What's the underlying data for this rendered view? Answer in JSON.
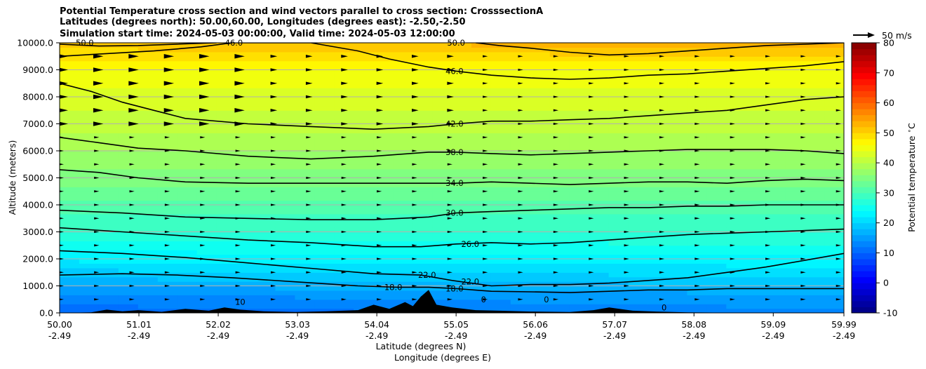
{
  "chart_data": {
    "type": "contour",
    "title_lines": [
      "Potential Temperature cross section and wind vectors parallel to cross section: CrosssectionA",
      "Latitudes (degrees north): 50.00,60.00, Longitudes (degrees east): -2.50,-2.50",
      "Simulation start time: 2024-05-03 00:00:00, Valid time: 2024-05-03 12:00:00"
    ],
    "xlabel_lines": [
      "Latitude (degrees N)",
      "Longitude (degrees E)"
    ],
    "ylabel": "Altitude (meters)",
    "x_ticks": [
      {
        "lat": "50.00",
        "lon": "-2.49"
      },
      {
        "lat": "51.01",
        "lon": "-2.49"
      },
      {
        "lat": "52.02",
        "lon": "-2.49"
      },
      {
        "lat": "53.03",
        "lon": "-2.49"
      },
      {
        "lat": "54.04",
        "lon": "-2.49"
      },
      {
        "lat": "55.05",
        "lon": "-2.49"
      },
      {
        "lat": "56.06",
        "lon": "-2.49"
      },
      {
        "lat": "57.07",
        "lon": "-2.49"
      },
      {
        "lat": "58.08",
        "lon": "-2.49"
      },
      {
        "lat": "59.09",
        "lon": "-2.49"
      },
      {
        "lat": "59.99",
        "lon": "-2.49"
      }
    ],
    "xlim": [
      50.0,
      59.99
    ],
    "ylim": [
      0,
      10000
    ],
    "y_ticks": [
      "0.0",
      "1000.0",
      "2000.0",
      "3000.0",
      "4000.0",
      "5000.0",
      "6000.0",
      "7000.0",
      "8000.0",
      "9000.0",
      "10000.0"
    ],
    "y_tick_values": [
      0,
      1000,
      2000,
      3000,
      4000,
      5000,
      6000,
      7000,
      8000,
      9000,
      10000
    ],
    "grid": "horizontal",
    "colorbar": {
      "label": "Potential temperature $^\\circ$C",
      "range": [
        -10,
        80
      ],
      "ticks": [
        "-10",
        "0",
        "10",
        "20",
        "30",
        "40",
        "50",
        "60",
        "70",
        "80"
      ],
      "colormap": "jet"
    },
    "contour_labels": [
      {
        "text": "22.0",
        "lat": 54.68,
        "alt": 1400
      },
      {
        "text": "22.0",
        "lat": 55.23,
        "alt": 1150
      },
      {
        "text": "18.0",
        "lat": 54.25,
        "alt": 950
      },
      {
        "text": "18.0",
        "lat": 55.03,
        "alt": 900
      },
      {
        "text": "26.0",
        "lat": 55.23,
        "alt": 2550
      },
      {
        "text": "30.0",
        "lat": 55.03,
        "alt": 3700
      },
      {
        "text": "34.0",
        "lat": 55.03,
        "alt": 4800
      },
      {
        "text": "38.0",
        "lat": 55.03,
        "alt": 5950
      },
      {
        "text": "42.0",
        "lat": 55.03,
        "alt": 7000
      },
      {
        "text": "46.0",
        "lat": 55.03,
        "alt": 8950
      },
      {
        "text": "50.0",
        "lat": 55.05,
        "alt": 10000
      },
      {
        "text": "46.0",
        "lat": 52.22,
        "alt": 10000
      },
      {
        "text": "50.0",
        "lat": 50.32,
        "alt": 10000
      },
      {
        "text": "10",
        "lat": 52.3,
        "alt": 400
      },
      {
        "text": "0",
        "lat": 55.4,
        "alt": 500
      },
      {
        "text": "0",
        "lat": 56.2,
        "alt": 500
      },
      {
        "text": "0",
        "lat": 57.7,
        "alt": 200
      }
    ],
    "contour_levels": [
      {
        "level": 18,
        "points": [
          [
            50.0,
            1400
          ],
          [
            50.8,
            1450
          ],
          [
            51.5,
            1400
          ],
          [
            52.2,
            1300
          ],
          [
            53.0,
            1150
          ],
          [
            53.8,
            1000
          ],
          [
            54.3,
            950
          ],
          [
            54.7,
            950
          ],
          [
            55.05,
            900
          ],
          [
            55.5,
            800
          ],
          [
            56.0,
            780
          ],
          [
            56.5,
            750
          ],
          [
            57.0,
            800
          ],
          [
            57.5,
            850
          ],
          [
            58.0,
            850
          ],
          [
            58.5,
            900
          ],
          [
            59.0,
            900
          ],
          [
            59.5,
            900
          ],
          [
            59.99,
            900
          ]
        ]
      },
      {
        "level": 22,
        "points": [
          [
            50.0,
            2300
          ],
          [
            50.8,
            2200
          ],
          [
            51.6,
            2050
          ],
          [
            52.4,
            1850
          ],
          [
            53.2,
            1650
          ],
          [
            54.0,
            1450
          ],
          [
            54.6,
            1400
          ],
          [
            55.0,
            1200
          ],
          [
            55.5,
            1000
          ],
          [
            56.0,
            1050
          ],
          [
            56.5,
            1050
          ],
          [
            57.0,
            1100
          ],
          [
            57.5,
            1200
          ],
          [
            58.0,
            1300
          ],
          [
            58.5,
            1500
          ],
          [
            59.0,
            1700
          ],
          [
            59.5,
            1950
          ],
          [
            59.99,
            2200
          ]
        ]
      },
      {
        "level": 26,
        "points": [
          [
            50.0,
            3150
          ],
          [
            50.8,
            3000
          ],
          [
            51.6,
            2850
          ],
          [
            52.4,
            2700
          ],
          [
            53.2,
            2600
          ],
          [
            54.0,
            2450
          ],
          [
            54.6,
            2450
          ],
          [
            55.05,
            2550
          ],
          [
            55.5,
            2600
          ],
          [
            56.0,
            2550
          ],
          [
            56.5,
            2600
          ],
          [
            57.0,
            2700
          ],
          [
            57.5,
            2800
          ],
          [
            58.0,
            2900
          ],
          [
            58.5,
            2950
          ],
          [
            59.0,
            3000
          ],
          [
            59.5,
            3050
          ],
          [
            59.99,
            3100
          ]
        ]
      },
      {
        "level": 30,
        "points": [
          [
            50.0,
            3800
          ],
          [
            50.8,
            3700
          ],
          [
            51.6,
            3550
          ],
          [
            52.4,
            3500
          ],
          [
            53.2,
            3450
          ],
          [
            54.0,
            3450
          ],
          [
            54.7,
            3550
          ],
          [
            55.05,
            3700
          ],
          [
            55.5,
            3750
          ],
          [
            56.0,
            3800
          ],
          [
            56.5,
            3850
          ],
          [
            57.0,
            3900
          ],
          [
            57.5,
            3900
          ],
          [
            58.0,
            3950
          ],
          [
            58.5,
            3950
          ],
          [
            59.0,
            4000
          ],
          [
            59.5,
            4000
          ],
          [
            59.99,
            4000
          ]
        ]
      },
      {
        "level": 34,
        "points": [
          [
            50.0,
            5300
          ],
          [
            50.5,
            5200
          ],
          [
            51.0,
            5000
          ],
          [
            51.6,
            4850
          ],
          [
            52.4,
            4800
          ],
          [
            53.2,
            4800
          ],
          [
            54.0,
            4800
          ],
          [
            54.7,
            4800
          ],
          [
            55.05,
            4800
          ],
          [
            55.5,
            4850
          ],
          [
            56.0,
            4800
          ],
          [
            56.5,
            4750
          ],
          [
            57.0,
            4800
          ],
          [
            57.5,
            4850
          ],
          [
            58.0,
            4850
          ],
          [
            58.5,
            4800
          ],
          [
            59.0,
            4900
          ],
          [
            59.5,
            4950
          ],
          [
            59.99,
            4900
          ]
        ]
      },
      {
        "level": 38,
        "points": [
          [
            50.0,
            6500
          ],
          [
            50.5,
            6300
          ],
          [
            51.0,
            6100
          ],
          [
            51.6,
            6000
          ],
          [
            52.4,
            5800
          ],
          [
            53.2,
            5700
          ],
          [
            54.0,
            5800
          ],
          [
            54.7,
            5950
          ],
          [
            55.05,
            5950
          ],
          [
            55.5,
            5900
          ],
          [
            56.0,
            5850
          ],
          [
            56.5,
            5900
          ],
          [
            57.0,
            5950
          ],
          [
            57.5,
            6000
          ],
          [
            58.0,
            6050
          ],
          [
            58.5,
            6050
          ],
          [
            59.0,
            6050
          ],
          [
            59.5,
            6000
          ],
          [
            59.99,
            5900
          ]
        ]
      },
      {
        "level": 42,
        "points": [
          [
            50.0,
            8500
          ],
          [
            50.4,
            8200
          ],
          [
            50.8,
            7800
          ],
          [
            51.2,
            7500
          ],
          [
            51.6,
            7200
          ],
          [
            52.4,
            7000
          ],
          [
            53.2,
            6900
          ],
          [
            54.0,
            6800
          ],
          [
            54.7,
            6900
          ],
          [
            55.05,
            7000
          ],
          [
            55.5,
            7100
          ],
          [
            56.0,
            7100
          ],
          [
            56.5,
            7150
          ],
          [
            57.0,
            7200
          ],
          [
            57.5,
            7300
          ],
          [
            58.0,
            7400
          ],
          [
            58.5,
            7500
          ],
          [
            59.0,
            7700
          ],
          [
            59.5,
            7900
          ],
          [
            59.99,
            8000
          ]
        ]
      },
      {
        "level": 46,
        "points": [
          [
            50.0,
            9500
          ],
          [
            50.6,
            9600
          ],
          [
            51.2,
            9700
          ],
          [
            51.8,
            9850
          ],
          [
            52.2,
            10000
          ],
          [
            53.2,
            10000
          ],
          [
            53.8,
            9700
          ],
          [
            54.2,
            9400
          ],
          [
            54.7,
            9100
          ],
          [
            55.05,
            8950
          ],
          [
            55.5,
            8800
          ],
          [
            56.0,
            8700
          ],
          [
            56.5,
            8650
          ],
          [
            57.0,
            8700
          ],
          [
            57.5,
            8800
          ],
          [
            58.0,
            8850
          ],
          [
            58.5,
            8950
          ],
          [
            59.0,
            9050
          ],
          [
            59.5,
            9150
          ],
          [
            59.99,
            9300
          ]
        ]
      },
      {
        "level": 50,
        "points": [
          [
            50.0,
            9950
          ],
          [
            50.5,
            9880
          ],
          [
            51.0,
            9900
          ],
          [
            51.5,
            9950
          ],
          [
            52.0,
            10000
          ]
        ]
      },
      {
        "level": 50,
        "points": [
          [
            55.3,
            10000
          ],
          [
            55.6,
            9900
          ],
          [
            56.0,
            9800
          ],
          [
            56.5,
            9650
          ],
          [
            57.0,
            9550
          ],
          [
            57.5,
            9600
          ],
          [
            58.0,
            9700
          ],
          [
            58.5,
            9800
          ],
          [
            59.0,
            9900
          ],
          [
            59.5,
            9950
          ],
          [
            59.99,
            10000
          ]
        ]
      }
    ],
    "terrain_profile": [
      [
        50.0,
        0
      ],
      [
        50.4,
        20
      ],
      [
        50.6,
        120
      ],
      [
        50.8,
        60
      ],
      [
        51.0,
        100
      ],
      [
        51.3,
        40
      ],
      [
        51.6,
        150
      ],
      [
        51.9,
        80
      ],
      [
        52.1,
        200
      ],
      [
        52.3,
        120
      ],
      [
        52.6,
        60
      ],
      [
        53.0,
        30
      ],
      [
        53.4,
        60
      ],
      [
        53.8,
        100
      ],
      [
        54.0,
        300
      ],
      [
        54.2,
        150
      ],
      [
        54.4,
        400
      ],
      [
        54.5,
        250
      ],
      [
        54.6,
        600
      ],
      [
        54.7,
        850
      ],
      [
        54.8,
        300
      ],
      [
        55.0,
        200
      ],
      [
        55.3,
        100
      ],
      [
        55.6,
        80
      ],
      [
        56.0,
        50
      ],
      [
        56.5,
        30
      ],
      [
        56.8,
        100
      ],
      [
        57.0,
        200
      ],
      [
        57.3,
        80
      ],
      [
        57.6,
        50
      ],
      [
        58.0,
        20
      ],
      [
        58.5,
        10
      ],
      [
        59.0,
        0
      ],
      [
        59.99,
        0
      ]
    ],
    "wind_vectors": {
      "reference_label": "50 m/s",
      "reference_speed_ms": 50,
      "grid_lat": [
        50.0,
        50.45,
        50.9,
        51.35,
        51.8,
        52.25,
        52.7,
        53.15,
        53.6,
        54.05,
        54.5,
        54.95,
        55.4,
        55.85,
        56.3,
        56.75,
        57.2,
        57.65,
        58.1,
        58.55,
        59.0,
        59.45,
        59.9
      ],
      "grid_alt": [
        500,
        1000,
        1500,
        2000,
        2500,
        3000,
        3500,
        4000,
        4500,
        5000,
        5500,
        6000,
        6500,
        7000,
        7500,
        8000,
        8500,
        9000,
        9500
      ]
    },
    "theta_field_description": "potential temperature increases with altitude from about 10 to 52 degC"
  }
}
